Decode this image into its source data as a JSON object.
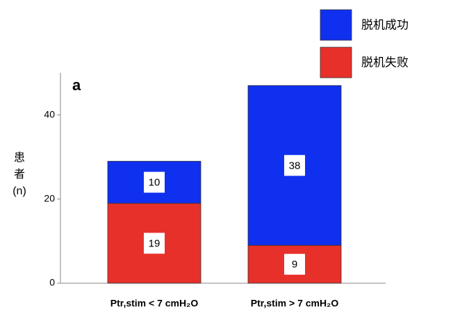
{
  "chart_data": {
    "type": "stacked_bar",
    "annotation": "a",
    "ylabel": [
      "患",
      "者",
      "(n)"
    ],
    "categories": [
      "Ptr,stim < 7 cmH₂O",
      "Ptr,stim > 7 cmH₂O"
    ],
    "series": [
      {
        "name": "脱机失败",
        "color": "#e8302a",
        "values": [
          19,
          9
        ]
      },
      {
        "name": "脱机成功",
        "color": "#1030f0",
        "values": [
          10,
          38
        ]
      }
    ],
    "ylim": [
      0,
      50
    ],
    "yticks": [
      0,
      20,
      40
    ],
    "grid": false,
    "legend": "upper right"
  }
}
